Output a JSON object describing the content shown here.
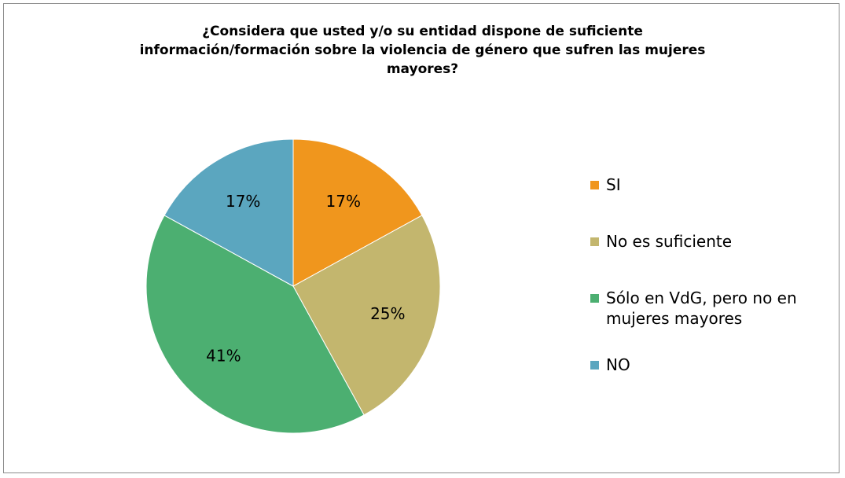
{
  "chart_data": {
    "type": "pie",
    "title_lines": [
      "¿Considera que usted y/o su entidad dispone de suficiente",
      "información/formación sobre la violencia de género que sufren las mujeres",
      "mayores?"
    ],
    "slices": [
      {
        "label": "SI",
        "value": 17,
        "display": "17%",
        "color": "#f0961d"
      },
      {
        "label": "No es suficiente",
        "value": 25,
        "display": "25%",
        "color": "#c3b66e"
      },
      {
        "label": "Sólo en VdG, pero no en mujeres mayores",
        "value": 41,
        "display": "41%",
        "color": "#4caf71"
      },
      {
        "label": "NO",
        "value": 17,
        "display": "17%",
        "color": "#5ba6bf"
      }
    ],
    "legend_placement": "right"
  },
  "legend": {
    "items": [
      {
        "lines": [
          "SI"
        ]
      },
      {
        "lines": [
          "No es suficiente"
        ]
      },
      {
        "lines": [
          "Sólo en VdG, pero no en",
          "mujeres mayores"
        ]
      },
      {
        "lines": [
          "NO"
        ]
      }
    ]
  }
}
